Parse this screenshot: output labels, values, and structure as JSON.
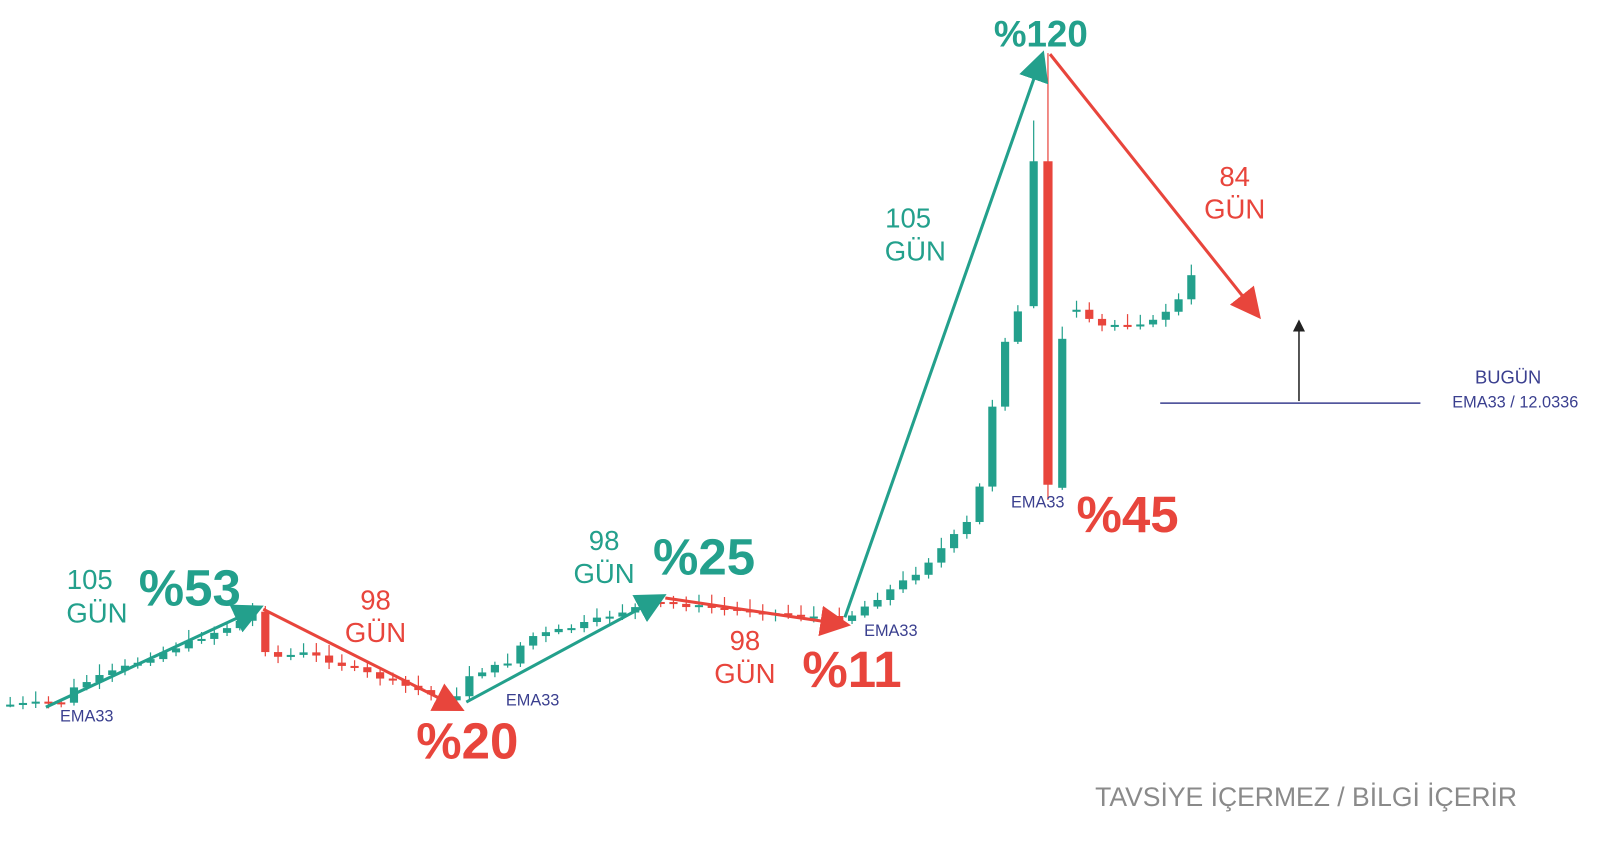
{
  "segments": [
    {
      "days": "105",
      "unit": "GÜN",
      "change": "%53"
    },
    {
      "days": "98",
      "unit": "GÜN",
      "change": "%20"
    },
    {
      "days": "98",
      "unit": "GÜN",
      "change": "%25"
    },
    {
      "days": "98",
      "unit": "GÜN",
      "change": "%11"
    },
    {
      "days": "105",
      "unit": "GÜN",
      "change": "%120"
    },
    {
      "days": "84",
      "unit": "GÜN",
      "change": "%45"
    }
  ],
  "ema_labels": [
    "EMA33",
    "EMA33",
    "EMA33",
    "EMA33"
  ],
  "today": {
    "label": "BUGÜN",
    "ema": "EMA33 / 12.0336"
  },
  "footer": "TAVSİYE İÇERMEZ / BİLGİ İÇERİR"
}
